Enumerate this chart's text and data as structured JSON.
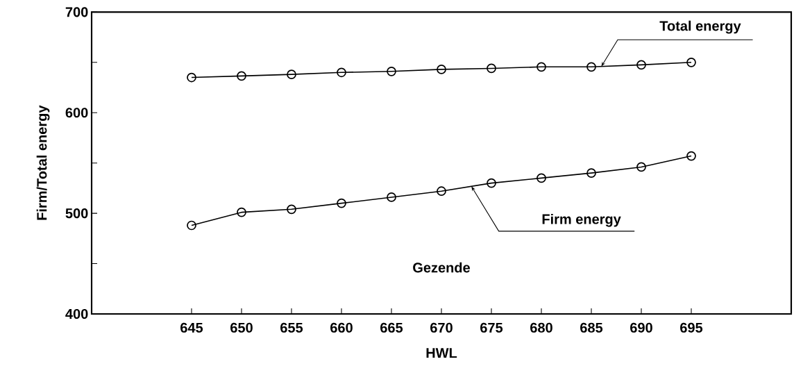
{
  "chart_data": {
    "type": "line",
    "xlabel": "HWL",
    "ylabel": "Firm/Total energy",
    "x": [
      645,
      650,
      655,
      660,
      665,
      670,
      675,
      680,
      685,
      690,
      695
    ],
    "series": [
      {
        "name": "Total energy",
        "color": "#000000",
        "values": [
          635,
          636.5,
          638,
          640,
          641,
          643,
          644,
          645.5,
          645.5,
          647.5,
          650
        ]
      },
      {
        "name": "Firm energy",
        "color": "#000000",
        "values": [
          488,
          501,
          504,
          510,
          516,
          522,
          530,
          535,
          540,
          546,
          557
        ]
      }
    ],
    "xlim": [
      635,
      705
    ],
    "ylim": [
      400,
      700
    ],
    "xticks": [
      645,
      650,
      655,
      660,
      665,
      670,
      675,
      680,
      685,
      690,
      695
    ],
    "yticks": [
      400,
      {
        "value": 450,
        "label": null
      },
      500,
      {
        "value": 550,
        "label": null
      },
      600,
      {
        "value": 650,
        "label": null
      },
      700
    ],
    "annotations": [
      "Gezende"
    ],
    "marker": "circle",
    "line_style": "solid",
    "grid": false,
    "legend": false
  }
}
